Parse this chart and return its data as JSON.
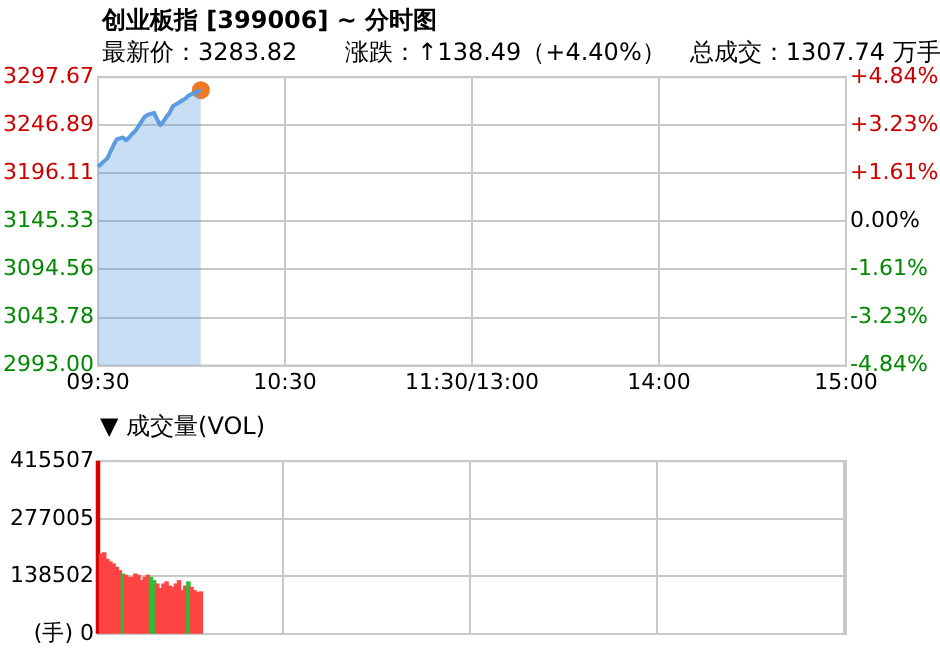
{
  "chart_data": [
    {
      "type": "area",
      "title": "创业板指 [399006] ~ 分时图",
      "subtitle": "最新价：3283.82　　涨跌：↑138.49（+4.40%）　总成交：1307.74 万手",
      "categories": [
        "09:30",
        null,
        null,
        null,
        null,
        null,
        null,
        null,
        null,
        null,
        null,
        null,
        null,
        null,
        null,
        null,
        null,
        null,
        null,
        null,
        null,
        null,
        null,
        null,
        null,
        null,
        null,
        null,
        null,
        null,
        null,
        null,
        null,
        null,
        null,
        null,
        null,
        null,
        null,
        null,
        null,
        null,
        null,
        null,
        null,
        null,
        null,
        null,
        null,
        null,
        null,
        null,
        null,
        null,
        null,
        null,
        null,
        null,
        null,
        null,
        "10:30",
        null,
        null,
        null,
        null,
        null,
        null,
        null,
        null,
        null,
        null,
        null,
        null,
        null,
        null,
        null,
        null,
        null,
        null,
        null,
        null,
        null,
        null,
        null,
        null,
        null,
        null,
        null,
        null,
        null,
        null,
        null,
        null,
        null,
        null,
        null,
        null,
        null,
        null,
        null,
        null,
        null,
        null,
        null,
        null,
        null,
        null,
        null,
        null,
        null,
        null,
        null,
        null,
        null,
        null,
        null,
        null,
        null,
        null,
        null,
        "11:30/13:00",
        null,
        null,
        null,
        null,
        null,
        null,
        null,
        null,
        null,
        null,
        null,
        null,
        null,
        null,
        null,
        null,
        null,
        null,
        null,
        null,
        null,
        null,
        null,
        null,
        null,
        null,
        null,
        null,
        null,
        null,
        null,
        null,
        null,
        null,
        null,
        null,
        null,
        null,
        null,
        null,
        null,
        null,
        null,
        null,
        null,
        null,
        null,
        null,
        null,
        null,
        null,
        null,
        null,
        null,
        null,
        null,
        null,
        null,
        null,
        "14:00",
        null,
        null,
        null,
        null,
        null,
        null,
        null,
        null,
        null,
        null,
        null,
        null,
        null,
        null,
        null,
        null,
        null,
        null,
        null,
        null,
        null,
        null,
        null,
        null,
        null,
        null,
        null,
        null,
        null,
        null,
        null,
        null,
        null,
        null,
        null,
        null,
        null,
        null,
        null,
        null,
        null,
        null,
        null,
        null,
        null,
        null,
        null,
        null,
        null,
        null,
        null,
        null,
        null,
        null,
        null,
        null,
        null,
        null,
        null,
        "15:00"
      ],
      "series": [
        {
          "type": "area",
          "color": "#5b9be0",
          "values": [
            3203,
            3206,
            3209,
            3212,
            3219,
            3226,
            3232,
            3233,
            3234,
            3231,
            3234,
            3238,
            3241,
            3246,
            3251,
            3256,
            3258,
            3259,
            3260,
            3253,
            3247,
            3251,
            3256,
            3260,
            3267,
            3269,
            3271,
            3273,
            3275,
            3278,
            3280,
            3281,
            3283,
            3284,
            null,
            null,
            null,
            null,
            null,
            null,
            null,
            null,
            null,
            null,
            null,
            null,
            null,
            null,
            null,
            null,
            null,
            null,
            null,
            null,
            null,
            null,
            null,
            null,
            null,
            null,
            null,
            null,
            null,
            null,
            null,
            null,
            null,
            null,
            null,
            null,
            null,
            null,
            null,
            null,
            null,
            null,
            null,
            null,
            null,
            null,
            null,
            null,
            null,
            null,
            null,
            null,
            null,
            null,
            null,
            null,
            null,
            null,
            null,
            null,
            null,
            null,
            null,
            null,
            null,
            null,
            null,
            null,
            null,
            null,
            null,
            null,
            null,
            null,
            null,
            null,
            null,
            null,
            null,
            null,
            null,
            null,
            null,
            null,
            null,
            null,
            null,
            null,
            null,
            null,
            null,
            null,
            null,
            null,
            null,
            null,
            null,
            null,
            null,
            null,
            null,
            null,
            null,
            null,
            null,
            null,
            null,
            null,
            null,
            null,
            null,
            null,
            null,
            null,
            null,
            null,
            null,
            null,
            null,
            null,
            null,
            null,
            null,
            null,
            null,
            null,
            null,
            null,
            null,
            null,
            null,
            null,
            null,
            null,
            null,
            null,
            null,
            null,
            null,
            null,
            null,
            null,
            null,
            null,
            null,
            null,
            null,
            null,
            null,
            null,
            null,
            null,
            null,
            null,
            null,
            null,
            null,
            null,
            null,
            null,
            null,
            null,
            null,
            null,
            null,
            null,
            null,
            null,
            null,
            null,
            null,
            null,
            null,
            null,
            null,
            null,
            null,
            null,
            null,
            null,
            null,
            null,
            null,
            null,
            null,
            null,
            null,
            null,
            null,
            null,
            null,
            null,
            null,
            null,
            null,
            null,
            null,
            null,
            null,
            null,
            null,
            null,
            null,
            null,
            null,
            null,
            null
          ]
        },
        {
          "type": "scatter",
          "color": "#f07820",
          "values": [
            null,
            null,
            null,
            null,
            null,
            null,
            null,
            null,
            null,
            null,
            null,
            null,
            null,
            null,
            null,
            null,
            null,
            null,
            null,
            null,
            null,
            null,
            null,
            null,
            null,
            null,
            null,
            null,
            null,
            null,
            null,
            null,
            null,
            3284,
            null,
            null,
            null,
            null,
            null,
            null,
            null,
            null,
            null,
            null,
            null,
            null,
            null,
            null,
            null,
            null,
            null,
            null,
            null,
            null,
            null,
            null,
            null,
            null,
            null,
            null,
            null,
            null,
            null,
            null,
            null,
            null,
            null,
            null,
            null,
            null,
            null,
            null,
            null,
            null,
            null,
            null,
            null,
            null,
            null,
            null,
            null,
            null,
            null,
            null,
            null,
            null,
            null,
            null,
            null,
            null,
            null,
            null,
            null,
            null,
            null,
            null,
            null,
            null,
            null,
            null,
            null,
            null,
            null,
            null,
            null,
            null,
            null,
            null,
            null,
            null,
            null,
            null,
            null,
            null,
            null,
            null,
            null,
            null,
            null,
            null,
            null,
            null,
            null,
            null,
            null,
            null,
            null,
            null,
            null,
            null,
            null,
            null,
            null,
            null,
            null,
            null,
            null,
            null,
            null,
            null,
            null,
            null,
            null,
            null,
            null,
            null,
            null,
            null,
            null,
            null,
            null,
            null,
            null,
            null,
            null,
            null,
            null,
            null,
            null,
            null,
            null,
            null,
            null,
            null,
            null,
            null,
            null,
            null,
            null,
            null,
            null,
            null,
            null,
            null,
            null,
            null,
            null,
            null,
            null,
            null,
            null,
            null,
            null,
            null,
            null,
            null,
            null,
            null,
            null,
            null,
            null,
            null,
            null,
            null,
            null,
            null,
            null,
            null,
            null,
            null,
            null,
            null,
            null,
            null,
            null,
            null,
            null,
            null,
            null,
            null,
            null,
            null,
            null,
            null,
            null,
            null,
            null,
            null,
            null,
            null,
            null,
            null,
            null,
            null,
            null,
            null,
            null,
            null,
            null,
            null,
            null,
            null,
            null,
            null,
            null,
            null,
            null,
            null,
            null,
            null,
            null
          ]
        }
      ],
      "ylim": [
        2993.0,
        3297.67
      ],
      "yticks": [
        {
          "value": 2993.0,
          "label": "2993.00"
        },
        3043.78,
        3094.56,
        3145.33,
        3196.11,
        3246.89,
        3297.67
      ],
      "y2lim": [
        -4.84,
        4.84
      ],
      "y2ticks": [
        {
          "value": -4.84,
          "label": "-4.84%"
        },
        {
          "value": -3.23,
          "label": "-3.23%"
        },
        {
          "value": -1.61,
          "label": "-1.61%"
        },
        {
          "value": 0,
          "label": "0.00%"
        },
        {
          "value": 1.61,
          "label": "+1.61%"
        },
        {
          "value": 3.23,
          "label": "+3.23%"
        },
        {
          "value": 4.84,
          "label": "+4.84%"
        }
      ],
      "grid": true
    },
    {
      "type": "bar",
      "title": "▼ 成交量(VOL)",
      "categories": [
        null,
        null,
        null,
        null,
        null,
        null,
        null,
        null,
        null,
        null,
        null,
        null,
        null,
        null,
        null,
        null,
        null,
        null,
        null,
        null,
        null,
        null,
        null,
        null,
        null,
        null,
        null,
        null,
        null,
        null,
        null,
        null,
        null,
        null,
        null,
        null,
        null,
        null,
        null,
        null,
        null,
        null,
        null,
        null,
        null,
        null,
        null,
        null,
        null,
        null,
        null,
        null,
        null,
        null,
        null,
        null,
        null,
        null,
        null,
        null,
        null,
        null,
        null,
        null,
        null,
        null,
        null,
        null,
        null,
        null,
        null,
        null,
        null,
        null,
        null,
        null,
        null,
        null,
        null,
        null,
        null,
        null,
        null,
        null,
        null,
        null,
        null,
        null,
        null,
        null,
        null,
        null,
        null,
        null,
        null,
        null,
        null,
        null,
        null,
        null,
        null,
        null,
        null,
        null,
        null,
        null,
        null,
        null,
        null,
        null,
        null,
        null,
        null,
        null,
        null,
        null,
        null,
        null,
        null,
        null,
        null,
        null,
        null,
        null,
        null,
        null,
        null,
        null,
        null,
        null,
        null,
        null,
        null,
        null,
        null,
        null,
        null,
        null,
        null,
        null,
        null,
        null,
        null,
        null,
        null,
        null,
        null,
        null,
        null,
        null,
        null,
        null,
        null,
        null,
        null,
        null,
        null,
        null,
        null,
        null,
        null,
        null,
        null,
        null,
        null,
        null,
        null,
        null,
        null,
        null,
        null,
        null,
        null,
        null,
        null,
        null,
        null,
        null,
        null,
        null,
        null,
        null,
        null,
        null,
        null,
        null,
        null,
        null,
        null,
        null,
        null,
        null,
        null,
        null,
        null,
        null,
        null,
        null,
        null,
        null,
        null,
        null,
        null,
        null,
        null,
        null,
        null,
        null,
        null,
        null,
        null,
        null,
        null,
        null,
        null,
        null,
        null,
        null,
        null,
        null,
        null,
        null,
        null,
        null,
        null,
        null,
        null,
        null,
        null,
        null,
        null,
        null,
        null,
        null,
        null,
        null,
        null,
        null,
        null,
        null,
        null
      ],
      "values": [
        415000,
        192000,
        195000,
        179000,
        173000,
        168000,
        160000,
        152000,
        144000,
        141000,
        136000,
        136000,
        144000,
        141000,
        128000,
        136000,
        141000,
        136000,
        128000,
        120000,
        109000,
        120000,
        125000,
        115000,
        112000,
        120000,
        128000,
        104000,
        115000,
        125000,
        112000,
        104000,
        99000,
        101000,
        null,
        null,
        null,
        null,
        null,
        null,
        null,
        null,
        null,
        null,
        null,
        null,
        null,
        null,
        null,
        null,
        null,
        null,
        null,
        null,
        null,
        null,
        null,
        null,
        null,
        null,
        null,
        null,
        null,
        null,
        null,
        null,
        null,
        null,
        null,
        null,
        null,
        null,
        null,
        null,
        null,
        null,
        null,
        null,
        null,
        null,
        null,
        null,
        null,
        null,
        null,
        null,
        null,
        null,
        null,
        null,
        null,
        null,
        null,
        null,
        null,
        null,
        null,
        null,
        null,
        null,
        null,
        null,
        null,
        null,
        null,
        null,
        null,
        null,
        null,
        null,
        null,
        null,
        null,
        null,
        null,
        null,
        null,
        null,
        null,
        null,
        null,
        null,
        null,
        null,
        null,
        null,
        null,
        null,
        null,
        null,
        null,
        null,
        null,
        null,
        null,
        null,
        null,
        null,
        null,
        null,
        null,
        null,
        null,
        null,
        null,
        null,
        null,
        null,
        null,
        null,
        null,
        null,
        null,
        null,
        null,
        null,
        null,
        null,
        null,
        null,
        null,
        null,
        null,
        null,
        null,
        null,
        null,
        null,
        null,
        null,
        null,
        null,
        null,
        null,
        null,
        null,
        null,
        null,
        null,
        null,
        null,
        null,
        null,
        null,
        null,
        null,
        null,
        null,
        null,
        null,
        null,
        null,
        null,
        null,
        null,
        null,
        null,
        null,
        null,
        null,
        null,
        null,
        null,
        null,
        null,
        null,
        null,
        null,
        null,
        null,
        null,
        null,
        null,
        null,
        null,
        null,
        null,
        null,
        null,
        null,
        null,
        null,
        null,
        null,
        null,
        null,
        null,
        null,
        null,
        null,
        null,
        null,
        null,
        null,
        null,
        null,
        null,
        null,
        null,
        null,
        null
      ],
      "colors": [
        "#dd0000",
        "#ff4444",
        "#ff4444",
        "#ff4444",
        "#ff4444",
        "#ff4444",
        "#ff4444",
        "#ff4444",
        "#33bb33",
        "#ff4444",
        "#ff4444",
        "#ff4444",
        "#ff4444",
        "#ff4444",
        "#ff4444",
        "#ff4444",
        "#ff4444",
        "#33bb33",
        "#33bb33",
        "#ff4444",
        "#ff4444",
        "#ff4444",
        "#ff4444",
        "#ff4444",
        "#ff4444",
        "#ff4444",
        "#ff4444",
        "#ff4444",
        "#ff4444",
        "#33bb33",
        "#ff4444",
        "#ff4444",
        "#ff4444",
        "#ff4444",
        null,
        null,
        null,
        null,
        null,
        null,
        null,
        null,
        null,
        null,
        null,
        null,
        null,
        null,
        null,
        null,
        null,
        null,
        null,
        null,
        null,
        null,
        null,
        null,
        null,
        null,
        null,
        null,
        null,
        null,
        null,
        null,
        null,
        null,
        null,
        null,
        null,
        null,
        null,
        null,
        null,
        null,
        null,
        null,
        null,
        null,
        null,
        null,
        null,
        null,
        null,
        null,
        null,
        null,
        null,
        null,
        null,
        null,
        null,
        null,
        null,
        null,
        null,
        null,
        null,
        null,
        null,
        null,
        null,
        null,
        null,
        null,
        null,
        null,
        null,
        null,
        null,
        null,
        null,
        null,
        null,
        null,
        null,
        null,
        null,
        null,
        null,
        null,
        null,
        null,
        null,
        null,
        null,
        null,
        null,
        null,
        null,
        null,
        null,
        null,
        null,
        null,
        null,
        null,
        null,
        null,
        null,
        null,
        null,
        null,
        null,
        null,
        null,
        null,
        null,
        null,
        null,
        null,
        null,
        null,
        null,
        null,
        null,
        null,
        null,
        null,
        null,
        null,
        null,
        null,
        null,
        null,
        null,
        null,
        null,
        null,
        null,
        null,
        null,
        null,
        null,
        null,
        null,
        null,
        null,
        null,
        null,
        null,
        null,
        null,
        null,
        null,
        null,
        null,
        null,
        null,
        null,
        null,
        null,
        null,
        null,
        null,
        null,
        null,
        null,
        null,
        null,
        null,
        null,
        null,
        null,
        null,
        null,
        null,
        null,
        null,
        null,
        null,
        null,
        null,
        null,
        null,
        null,
        null,
        null,
        null,
        null,
        null,
        null,
        null,
        null,
        null,
        null,
        null,
        null,
        null,
        null,
        null,
        null,
        null,
        null,
        null,
        null,
        null,
        null,
        null,
        null
      ],
      "ylim": [
        0,
        415507
      ],
      "yticks": [
        {
          "value": 0,
          "label": "(手) 0"
        },
        138502,
        277005,
        415507
      ],
      "tick_labels": "y",
      "grid": true
    }
  ]
}
